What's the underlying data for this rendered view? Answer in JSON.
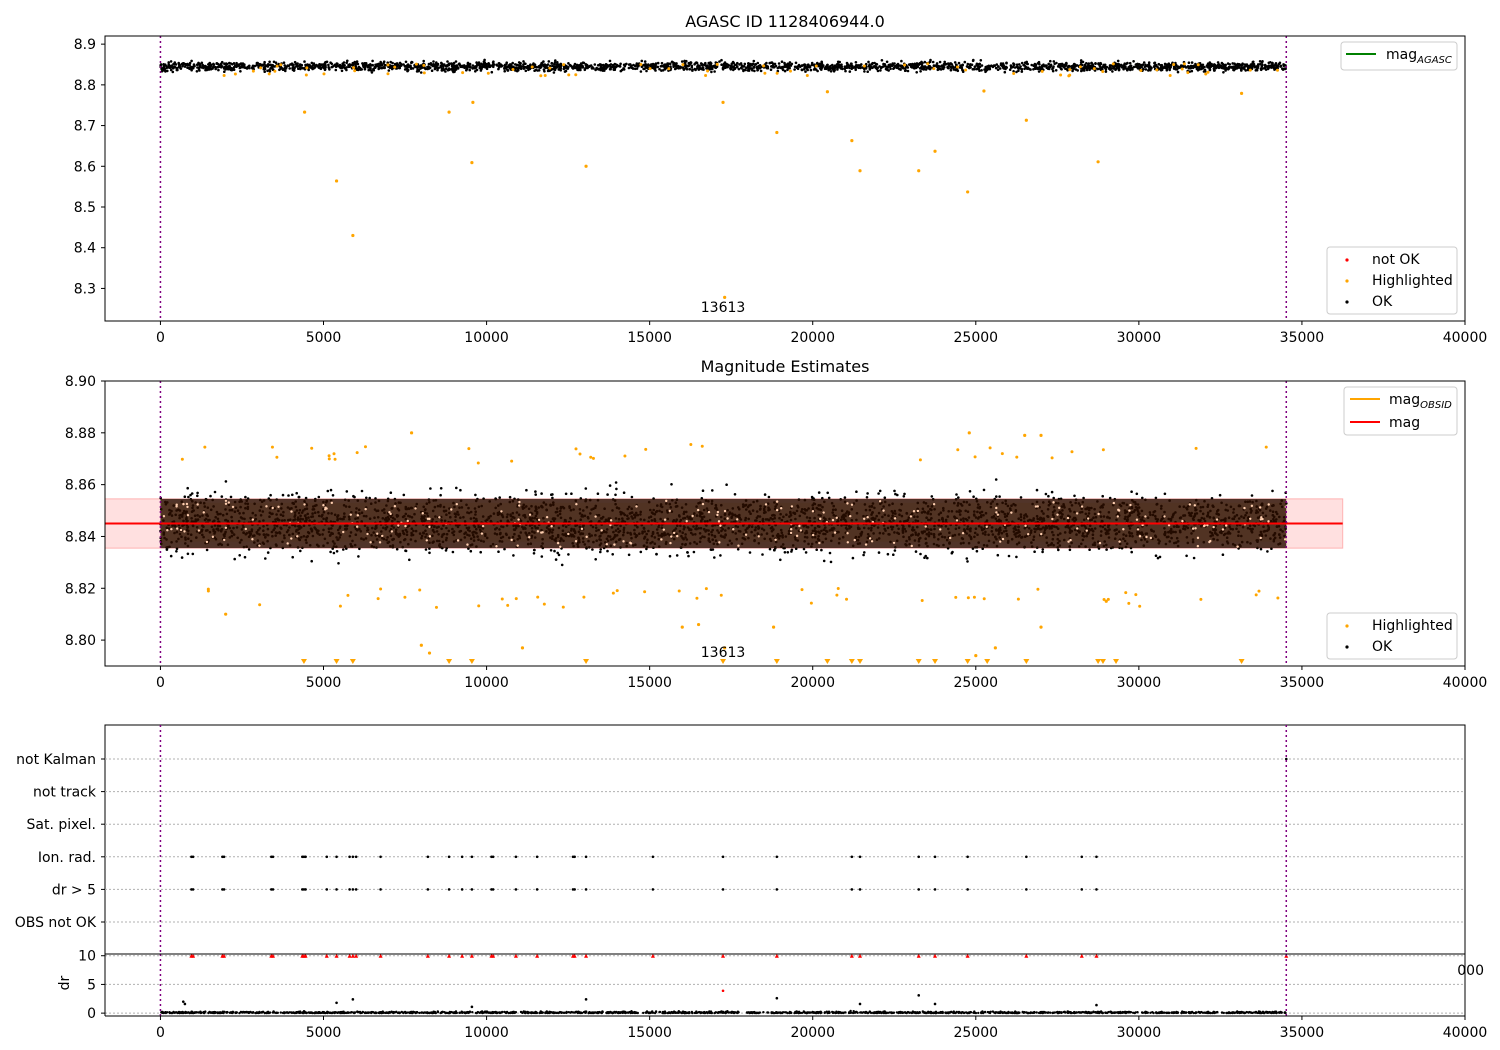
{
  "chart_data": [
    {
      "type": "scatter",
      "title": "AGASC ID 1128406944.0",
      "xlabel": "",
      "ylabel": "",
      "xlim": [
        -1700,
        40000
      ],
      "ylim": [
        8.22,
        8.92
      ],
      "x_ticks": [
        0,
        5000,
        10000,
        15000,
        20000,
        25000,
        30000,
        35000,
        40000
      ],
      "x_tick_labels": [
        "0",
        "5000",
        "10000",
        "15000",
        "20000",
        "25000",
        "30000",
        "35000",
        "40000"
      ],
      "y_ticks": [
        8.3,
        8.4,
        8.5,
        8.6,
        8.7,
        8.8,
        8.9
      ],
      "y_tick_labels": [
        "8.3",
        "8.4",
        "8.5",
        "8.6",
        "8.7",
        "8.8",
        "8.9"
      ],
      "vlines": [
        0,
        34520
      ],
      "obsid_label": {
        "text": "13613",
        "x": 17250
      },
      "legend_top": [
        {
          "name": "mag_AGASC",
          "base": "mag",
          "sub": "AGASC",
          "color": "#008000",
          "marker": "line"
        }
      ],
      "legend_bottom": [
        {
          "name": "not OK",
          "color": "#ff0000",
          "marker": "dot"
        },
        {
          "name": "Highlighted",
          "color": "#ffa500",
          "marker": "dot"
        },
        {
          "name": "OK",
          "color": "#000000",
          "marker": "dot"
        }
      ],
      "band": {
        "center": 8.845,
        "low": 8.825,
        "high": 8.866,
        "x_start": 0,
        "x_end": 34520
      },
      "highlighted_points": [
        [
          4420,
          8.733
        ],
        [
          5400,
          8.564
        ],
        [
          5900,
          8.43
        ],
        [
          8850,
          8.733
        ],
        [
          9550,
          8.609
        ],
        [
          9580,
          8.757
        ],
        [
          13050,
          8.6
        ],
        [
          17250,
          8.757
        ],
        [
          17300,
          8.278
        ],
        [
          18900,
          8.683
        ],
        [
          21200,
          8.663
        ],
        [
          21450,
          8.589
        ],
        [
          23250,
          8.589
        ],
        [
          23750,
          8.637
        ],
        [
          24750,
          8.537
        ],
        [
          26550,
          8.713
        ],
        [
          28750,
          8.611
        ],
        [
          33150,
          8.779
        ],
        [
          20450,
          8.783
        ],
        [
          25250,
          8.785
        ]
      ],
      "point_colors": {
        "ok": "#000000",
        "highlighted": "#ffa500"
      }
    },
    {
      "type": "scatter",
      "title": "Magnitude Estimates",
      "xlabel": "",
      "ylabel": "",
      "xlim": [
        -1700,
        40000
      ],
      "ylim": [
        8.79,
        8.9
      ],
      "x_ticks": [
        0,
        5000,
        10000,
        15000,
        20000,
        25000,
        30000,
        35000,
        40000
      ],
      "x_tick_labels": [
        "0",
        "5000",
        "10000",
        "15000",
        "20000",
        "25000",
        "30000",
        "35000",
        "40000"
      ],
      "y_ticks": [
        8.8,
        8.82,
        8.84,
        8.86,
        8.88,
        8.9
      ],
      "y_tick_labels": [
        "8.80",
        "8.82",
        "8.84",
        "8.86",
        "8.88",
        "8.90"
      ],
      "vlines": [
        0,
        34520
      ],
      "obsid_label": {
        "text": "13613",
        "x": 17250
      },
      "mag_line": {
        "value": 8.845,
        "x_range": [
          -1700,
          36250
        ],
        "color": "#ff0000"
      },
      "mag_band": {
        "low": 8.8355,
        "high": 8.8545,
        "x_range": [
          -1700,
          36250
        ],
        "color": "#ffcccc"
      },
      "obsid_mag": {
        "value": 8.845,
        "low": 8.838,
        "high": 8.853,
        "x_range": [
          0,
          34520
        ],
        "color": "#ffa500"
      },
      "legend_top": [
        {
          "name": "mag_OBSID",
          "base": "mag",
          "sub": "OBSID",
          "color": "#ffa500",
          "marker": "line"
        },
        {
          "name": "mag",
          "base": "mag",
          "sub": "",
          "color": "#ff0000",
          "marker": "line"
        }
      ],
      "legend_bottom": [
        {
          "name": "Highlighted",
          "color": "#ffa500",
          "marker": "dot"
        },
        {
          "name": "OK",
          "color": "#000000",
          "marker": "dot"
        }
      ],
      "band": {
        "center": 8.845,
        "low": 8.822,
        "high": 8.869,
        "x_start": 0,
        "x_end": 34520
      },
      "below_limit_markers_x": [
        4400,
        5400,
        5900,
        8850,
        9550,
        13050,
        17250,
        18900,
        20450,
        21200,
        21450,
        23250,
        23750,
        24750,
        25350,
        26550,
        28750,
        28900,
        29300,
        33150
      ],
      "highlighted_points": [
        [
          8000,
          8.798
        ],
        [
          8250,
          8.795
        ],
        [
          11100,
          8.797
        ],
        [
          16000,
          8.805
        ],
        [
          16500,
          8.806
        ],
        [
          18800,
          8.805
        ],
        [
          25000,
          8.794
        ],
        [
          25600,
          8.797
        ],
        [
          27000,
          8.805
        ],
        [
          7700,
          8.88
        ],
        [
          24800,
          8.88
        ],
        [
          26500,
          8.879
        ],
        [
          27000,
          8.879
        ],
        [
          2000,
          8.81
        ],
        [
          17300,
          8.797
        ],
        [
          29000,
          8.815
        ]
      ],
      "point_colors": {
        "ok": "#000000",
        "highlighted": "#ffa500"
      }
    },
    {
      "type": "scatter",
      "title": "",
      "xlabel": "",
      "ylabel": "",
      "xlim": [
        -1700,
        40000
      ],
      "categories": [
        "not Kalman",
        "not track",
        "Sat. pixel.",
        "Ion. rad.",
        "dr > 5",
        "OBS not OK"
      ],
      "x_ticks": [],
      "vlines": [
        0,
        34520
      ],
      "flag_events": {
        "Ion. rad.": [
          950,
          1000,
          1900,
          1950,
          3400,
          3450,
          4350,
          4400,
          4450,
          5100,
          5400,
          5800,
          5900,
          6000,
          6750,
          8200,
          8850,
          9250,
          9550,
          10150,
          10200,
          10900,
          11550,
          12650,
          12700,
          13050,
          15100,
          17250,
          18900,
          21200,
          21450,
          23250,
          23750,
          24750,
          26550,
          28250,
          28700
        ],
        "dr > 5": [
          950,
          1000,
          1900,
          1950,
          3400,
          3450,
          4350,
          4400,
          4450,
          5100,
          5400,
          5800,
          5900,
          6000,
          6750,
          8200,
          8850,
          9250,
          9550,
          10150,
          10200,
          10900,
          11550,
          12650,
          12700,
          13050,
          15100,
          17250,
          18900,
          21200,
          21450,
          23250,
          23750,
          24750,
          26550,
          28250,
          28700
        ],
        "not Kalman": [
          34520
        ]
      }
    },
    {
      "type": "scatter",
      "title": "",
      "xlabel": "",
      "ylabel": "dr",
      "xlim": [
        -1700,
        40000
      ],
      "ylim": [
        -0.5,
        10.3
      ],
      "x_ticks": [
        0,
        5000,
        10000,
        15000,
        20000,
        25000,
        30000,
        35000,
        40000
      ],
      "x_tick_labels": [
        "0",
        "5000",
        "10000",
        "15000",
        "20000",
        "25000",
        "30000",
        "35000",
        "40000"
      ],
      "y_ticks": [
        0,
        5,
        10
      ],
      "y_tick_labels": [
        "0",
        "5",
        "10"
      ],
      "vlines": [
        0,
        34520
      ],
      "capped_points_x": [
        950,
        1000,
        1900,
        1950,
        3400,
        3450,
        4350,
        4400,
        4450,
        5100,
        5400,
        5800,
        5900,
        6000,
        6750,
        8200,
        8850,
        9250,
        9550,
        10150,
        10200,
        10900,
        11550,
        12650,
        12700,
        13050,
        15100,
        17250,
        18900,
        21200,
        21450,
        23250,
        23750,
        24750,
        26550,
        28250,
        28700,
        34520
      ],
      "capped_value": 10,
      "scattered_points": [
        [
          700,
          2.0
        ],
        [
          750,
          1.6
        ],
        [
          5400,
          1.8
        ],
        [
          5900,
          2.4
        ],
        [
          13050,
          2.4
        ],
        [
          17250,
          3.9
        ],
        [
          18900,
          2.6
        ],
        [
          21450,
          1.6
        ],
        [
          23250,
          3.1
        ],
        [
          23750,
          1.6
        ],
        [
          28700,
          1.4
        ],
        [
          9550,
          1.1
        ]
      ],
      "stray_tick_label": "000"
    }
  ]
}
